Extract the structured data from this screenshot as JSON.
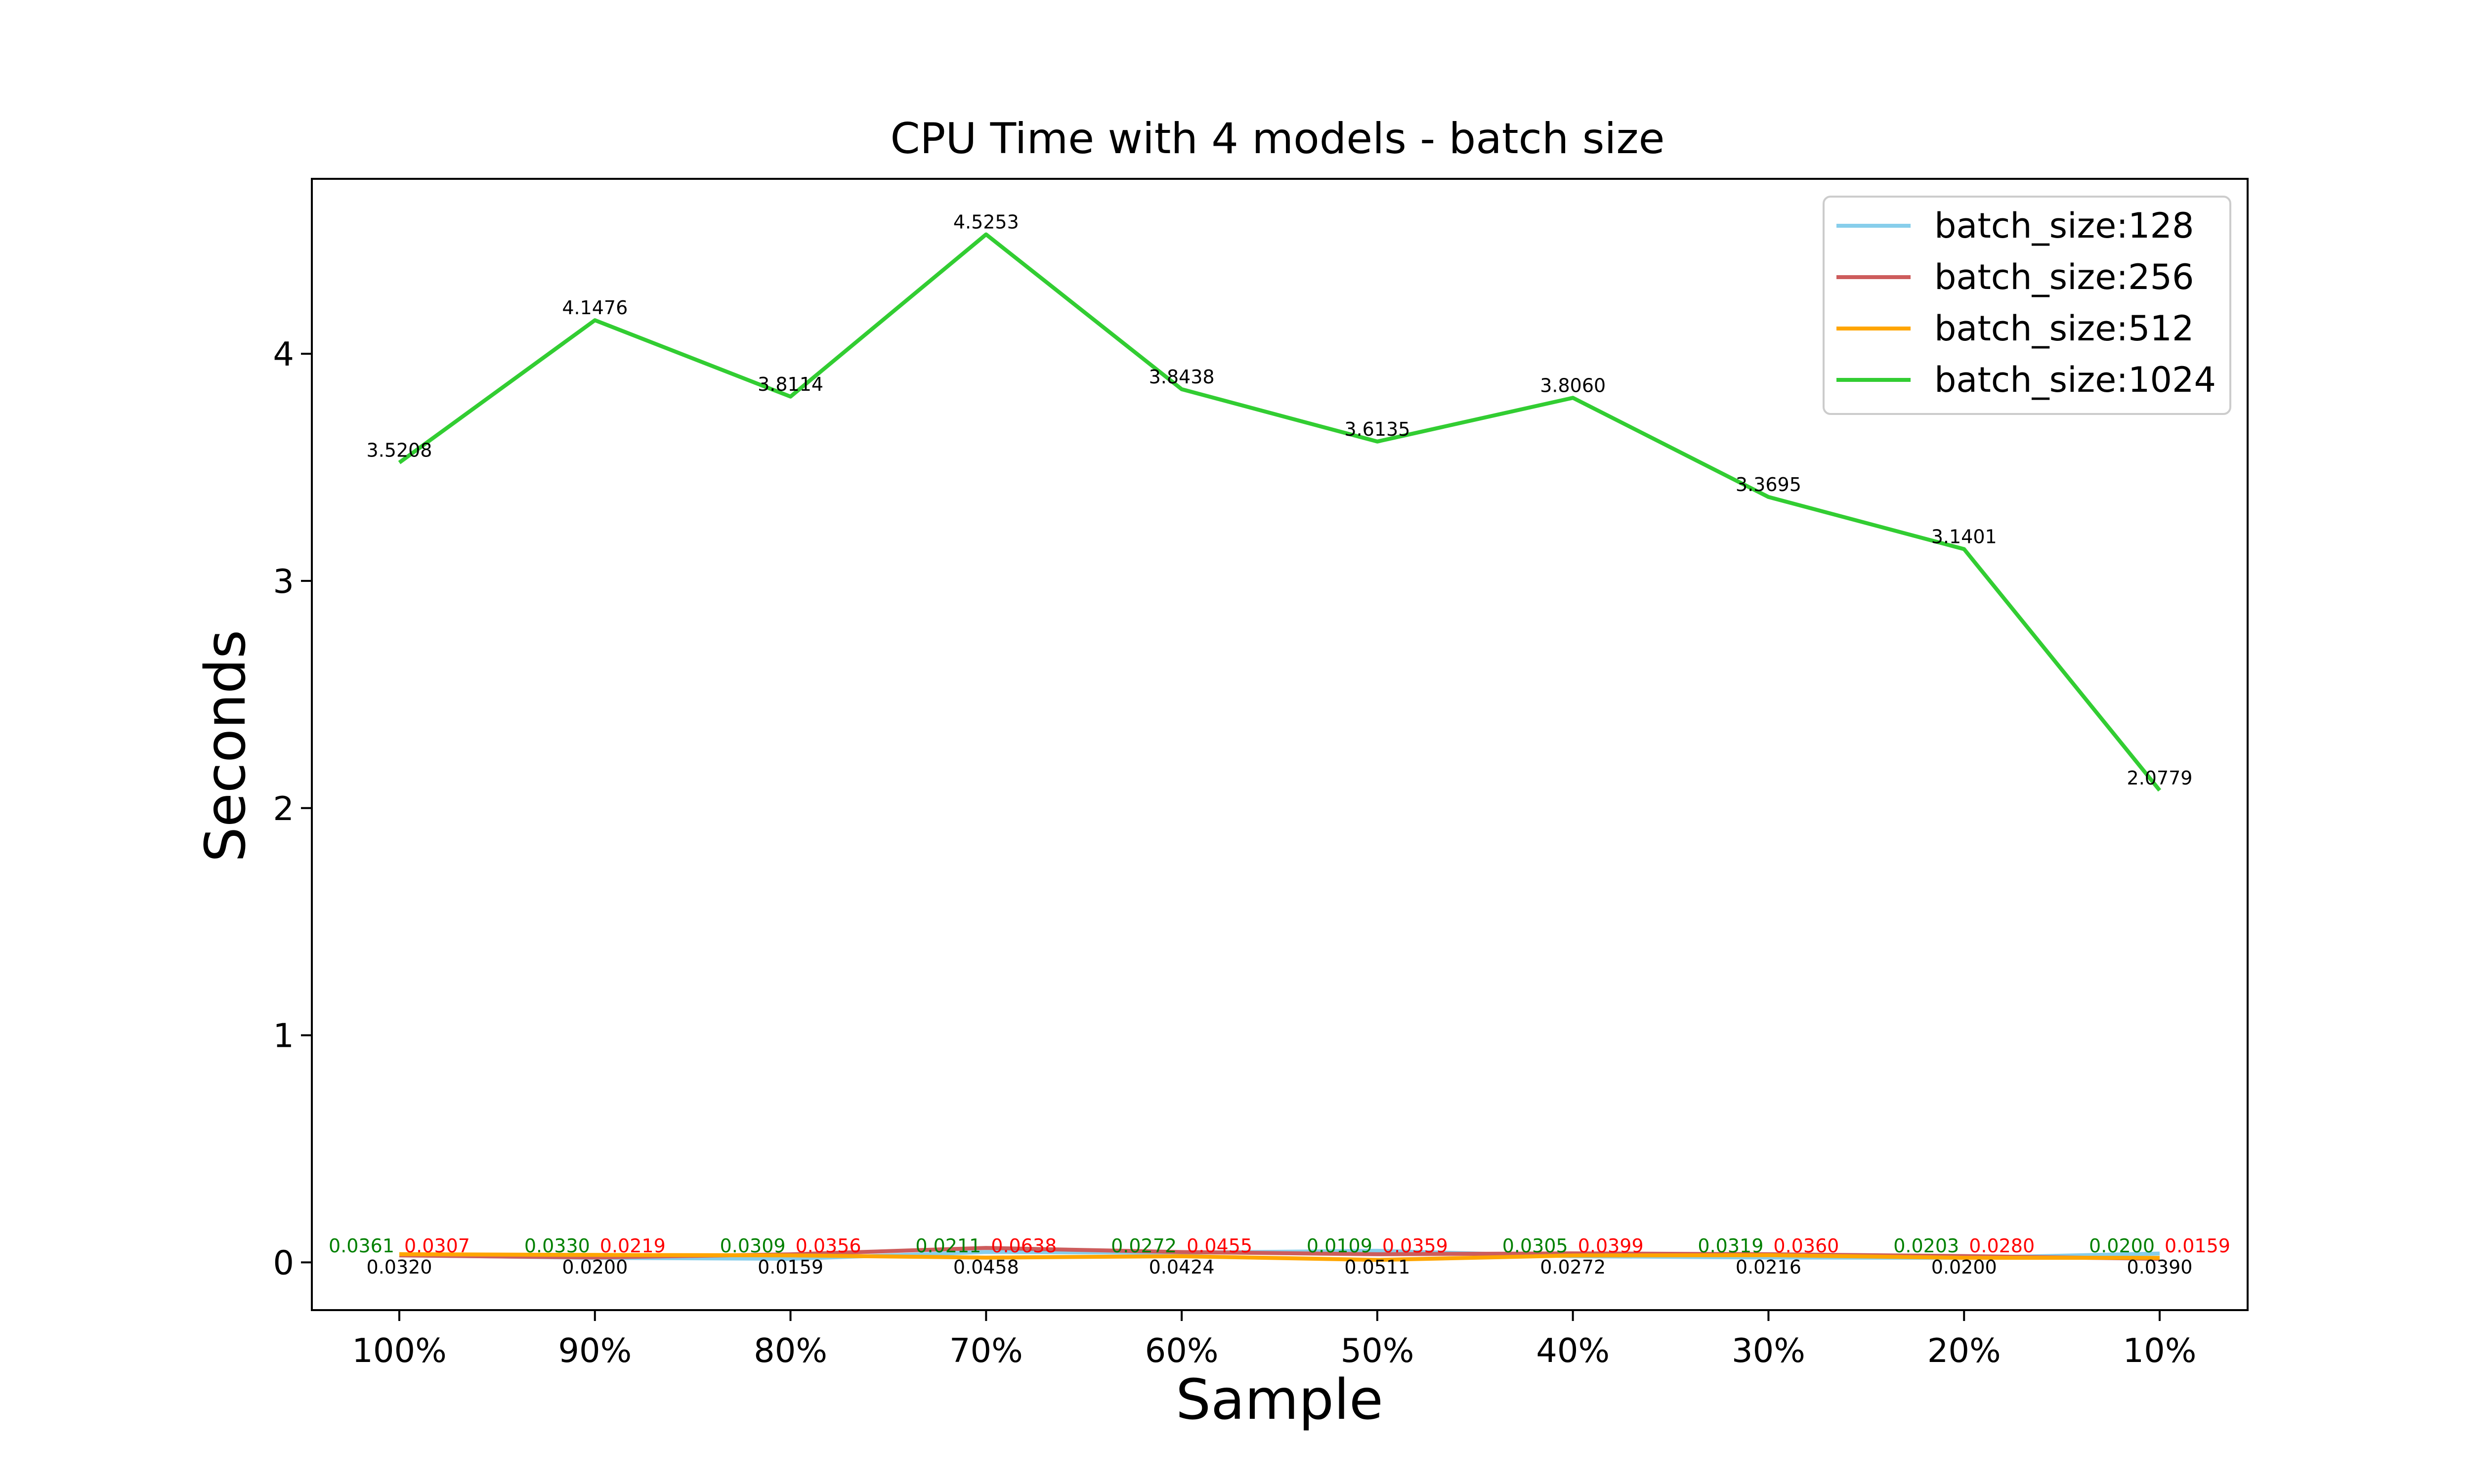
{
  "chart_data": {
    "type": "line",
    "title": "CPU Time with 4 models - batch size",
    "xlabel": "Sample",
    "ylabel": "Seconds",
    "categories": [
      "100%",
      "90%",
      "80%",
      "70%",
      "60%",
      "50%",
      "40%",
      "30%",
      "20%",
      "10%"
    ],
    "ylim": [
      -0.21,
      4.77
    ],
    "yticks": [
      0,
      1,
      2,
      3,
      4
    ],
    "grid": false,
    "legend_position": "top-right",
    "series": [
      {
        "name": "batch_size:128",
        "color": "#87ceeb",
        "values": [
          0.032,
          0.02,
          0.0159,
          0.0458,
          0.0424,
          0.0511,
          0.0272,
          0.0216,
          0.02,
          0.039
        ],
        "labels": [
          "0.0320",
          "0.0200",
          "0.0159",
          "0.0458",
          "0.0424",
          "0.0511",
          "0.0272",
          "0.0216",
          "0.0200",
          "0.0390"
        ],
        "label_color": "#000000",
        "label_offset": -1
      },
      {
        "name": "batch_size:256",
        "color": "#cd5c5c",
        "values": [
          0.0307,
          0.0219,
          0.0356,
          0.0638,
          0.0455,
          0.0359,
          0.0399,
          0.036,
          0.028,
          0.0159
        ],
        "labels": [
          "0.0307",
          "0.0219",
          "0.0356",
          "0.0638",
          "0.0455",
          "0.0359",
          "0.0399",
          "0.0360",
          "0.0280",
          "0.0159"
        ],
        "label_color": "#ff0000",
        "label_offset": 1
      },
      {
        "name": "batch_size:512",
        "color": "#ffa500",
        "values": [
          0.0361,
          0.033,
          0.0309,
          0.0211,
          0.0272,
          0.0109,
          0.0305,
          0.0319,
          0.0203,
          0.02
        ],
        "labels": [
          "0.0361",
          "0.0330",
          "0.0309",
          "0.0211",
          "0.0272",
          "0.0109",
          "0.0305",
          "0.0319",
          "0.0203",
          "0.0200"
        ],
        "label_color": "#008000",
        "label_offset": 0
      },
      {
        "name": "batch_size:1024",
        "color": "#32cd32",
        "values": [
          3.5208,
          4.1476,
          3.8114,
          4.5253,
          3.8438,
          3.6135,
          3.806,
          3.3695,
          3.1401,
          2.0779
        ],
        "labels": [
          "3.5208",
          "4.1476",
          "3.8114",
          "4.5253",
          "3.8438",
          "3.6135",
          "3.8060",
          "3.3695",
          "3.1401",
          "2.0779"
        ],
        "label_color": "#000000",
        "label_offset": 0
      }
    ]
  }
}
